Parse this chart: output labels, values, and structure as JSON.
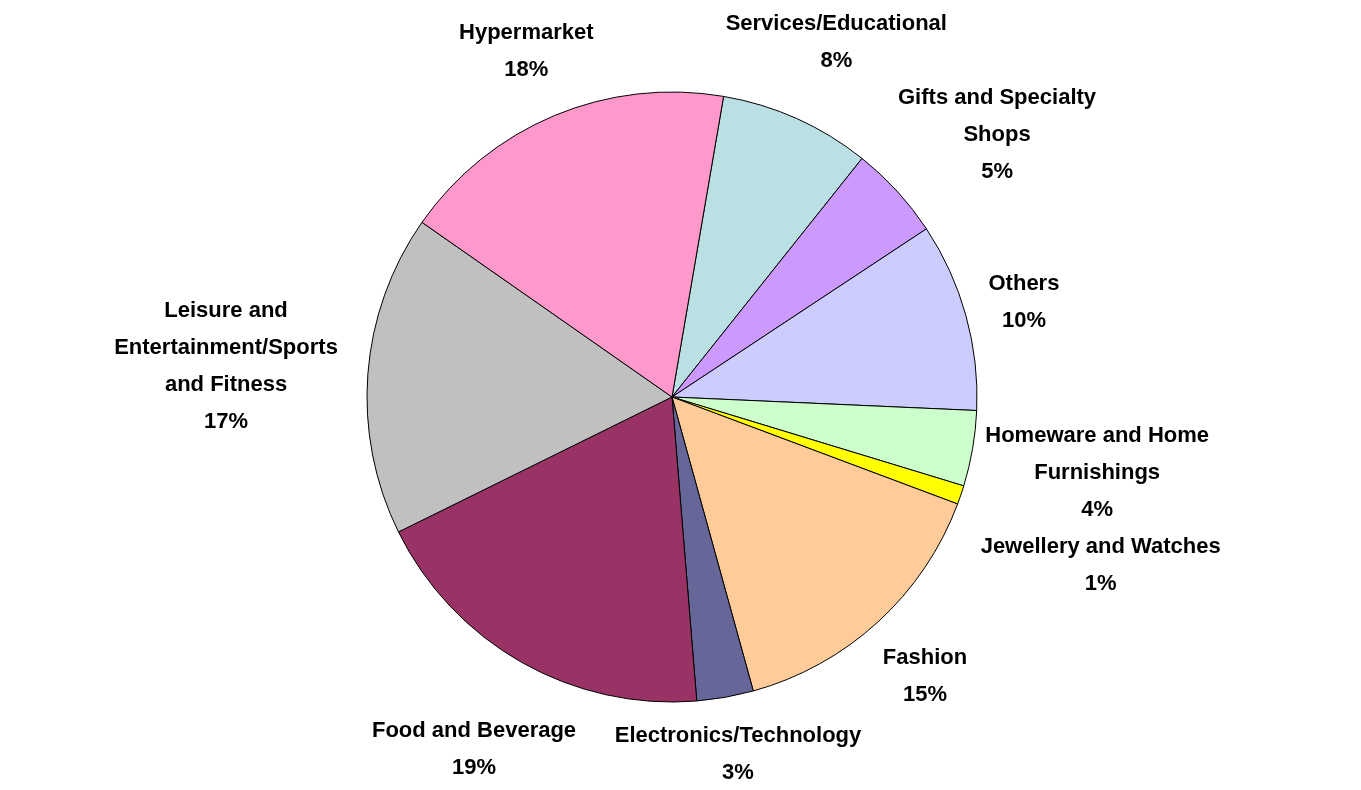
{
  "chart_data": {
    "type": "pie",
    "categories": [
      "Services/Educational",
      "Gifts and Specialty Shops",
      "Others",
      "Homeware and Home Furnishings",
      "Jewellery and Watches",
      "Fashion",
      "Electronics/Technology",
      "Food and Beverage",
      "Leisure and Entertainment/Sports and Fitness",
      "Hypermarket"
    ],
    "values": [
      8,
      5,
      10,
      4,
      1,
      15,
      3,
      19,
      17,
      18
    ],
    "value_labels": [
      "8%",
      "5%",
      "10%",
      "4%",
      "1%",
      "15%",
      "3%",
      "19%",
      "17%",
      "18%"
    ],
    "colors": [
      "#bbe0e3",
      "#cc99ff",
      "#ccccff",
      "#ccffcc",
      "#ffff00",
      "#ffcc99",
      "#666699",
      "#993366",
      "#c0c0c0",
      "#ff99cc"
    ]
  }
}
